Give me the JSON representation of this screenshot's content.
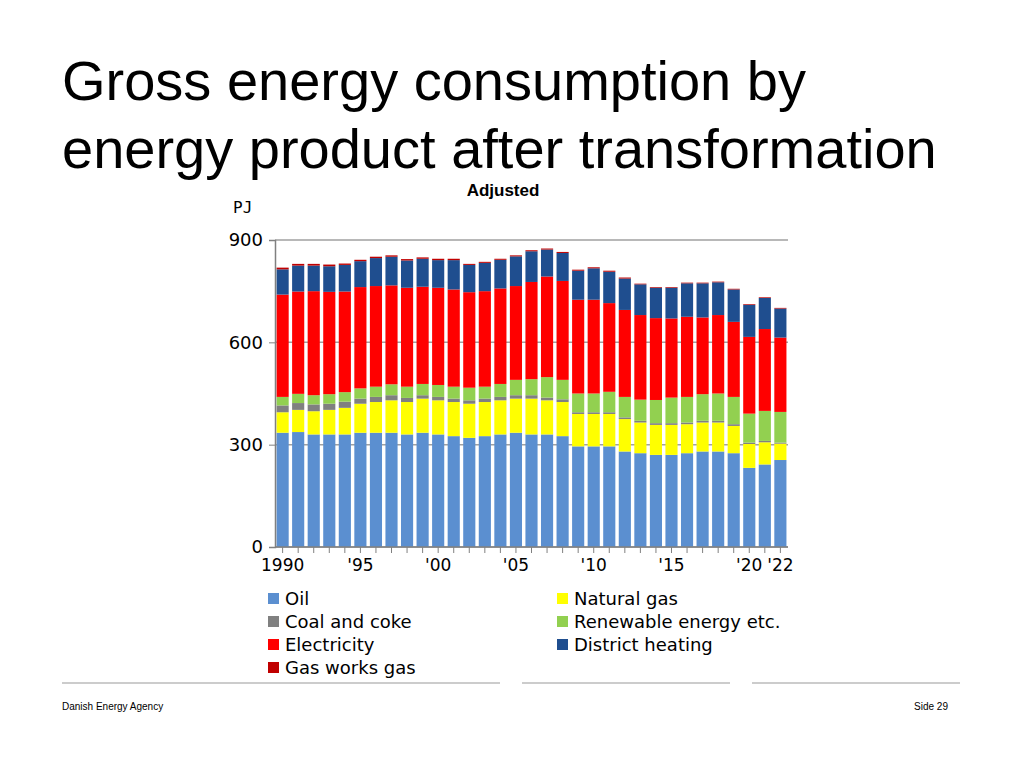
{
  "chart_data": {
    "type": "bar",
    "title": "Gross energy consumption by energy product after transformation",
    "subtitle": "Adjusted",
    "y_label": "PJ",
    "stacked": true,
    "grid": true,
    "legend": "bottom",
    "ylim": [
      0,
      900
    ],
    "yticks": [
      0,
      300,
      600,
      900
    ],
    "categories": [
      "1990",
      null,
      null,
      null,
      null,
      "'95",
      null,
      null,
      null,
      null,
      "'00",
      null,
      null,
      null,
      null,
      "'05",
      null,
      null,
      null,
      null,
      "'10",
      null,
      null,
      null,
      null,
      "'15",
      null,
      null,
      null,
      null,
      "'20",
      null,
      "'22"
    ],
    "series": [
      {
        "name": "Oil",
        "color": "#5b8fd0",
        "values": [
          335,
          337,
          330,
          330,
          330,
          335,
          335,
          335,
          330,
          335,
          330,
          325,
          320,
          325,
          330,
          335,
          330,
          330,
          325,
          295,
          295,
          295,
          280,
          275,
          270,
          270,
          275,
          280,
          280,
          275,
          232,
          242,
          255
        ]
      },
      {
        "name": "Natural gas",
        "color": "#ffff00",
        "values": [
          60,
          65,
          68,
          72,
          78,
          85,
          90,
          95,
          95,
          100,
          100,
          100,
          100,
          100,
          100,
          100,
          105,
          100,
          100,
          95,
          95,
          95,
          95,
          90,
          88,
          88,
          85,
          85,
          85,
          80,
          70,
          65,
          48
        ]
      },
      {
        "name": "Coal and coke",
        "color": "#808080",
        "values": [
          20,
          20,
          20,
          18,
          18,
          15,
          15,
          15,
          12,
          10,
          10,
          10,
          10,
          10,
          10,
          10,
          10,
          8,
          8,
          5,
          5,
          5,
          5,
          5,
          5,
          5,
          5,
          5,
          5,
          5,
          4,
          4,
          3
        ]
      },
      {
        "name": "Renewable energy etc.",
        "color": "#92d050",
        "values": [
          25,
          27,
          27,
          28,
          28,
          30,
          30,
          32,
          33,
          33,
          35,
          35,
          37,
          35,
          38,
          45,
          47,
          60,
          57,
          55,
          55,
          60,
          60,
          62,
          68,
          75,
          75,
          78,
          80,
          80,
          85,
          88,
          90
        ]
      },
      {
        "name": "Electricity",
        "color": "#ff0000",
        "values": [
          300,
          300,
          305,
          300,
          295,
          297,
          295,
          290,
          290,
          285,
          285,
          285,
          280,
          280,
          280,
          275,
          285,
          295,
          290,
          275,
          275,
          260,
          255,
          248,
          240,
          232,
          235,
          225,
          230,
          220,
          225,
          240,
          218
        ]
      },
      {
        "name": "District heating",
        "color": "#1f4e8f",
        "values": [
          74,
          76,
          75,
          75,
          78,
          76,
          82,
          84,
          80,
          82,
          81,
          86,
          80,
          83,
          84,
          87,
          90,
          79,
          82,
          85,
          92,
          92,
          92,
          90,
          89,
          90,
          98,
          100,
          96,
          95,
          94,
          91,
          85
        ]
      },
      {
        "name": "Gas works gas",
        "color": "#c00000",
        "values": [
          5,
          5,
          5,
          5,
          4,
          4,
          4,
          4,
          4,
          4,
          4,
          4,
          3,
          3,
          3,
          3,
          3,
          3,
          3,
          3,
          3,
          3,
          3,
          2,
          2,
          2,
          2,
          2,
          2,
          2,
          2,
          2,
          2
        ]
      }
    ]
  },
  "footer": {
    "source": "Danish Energy Agency",
    "page": "Side 29"
  }
}
